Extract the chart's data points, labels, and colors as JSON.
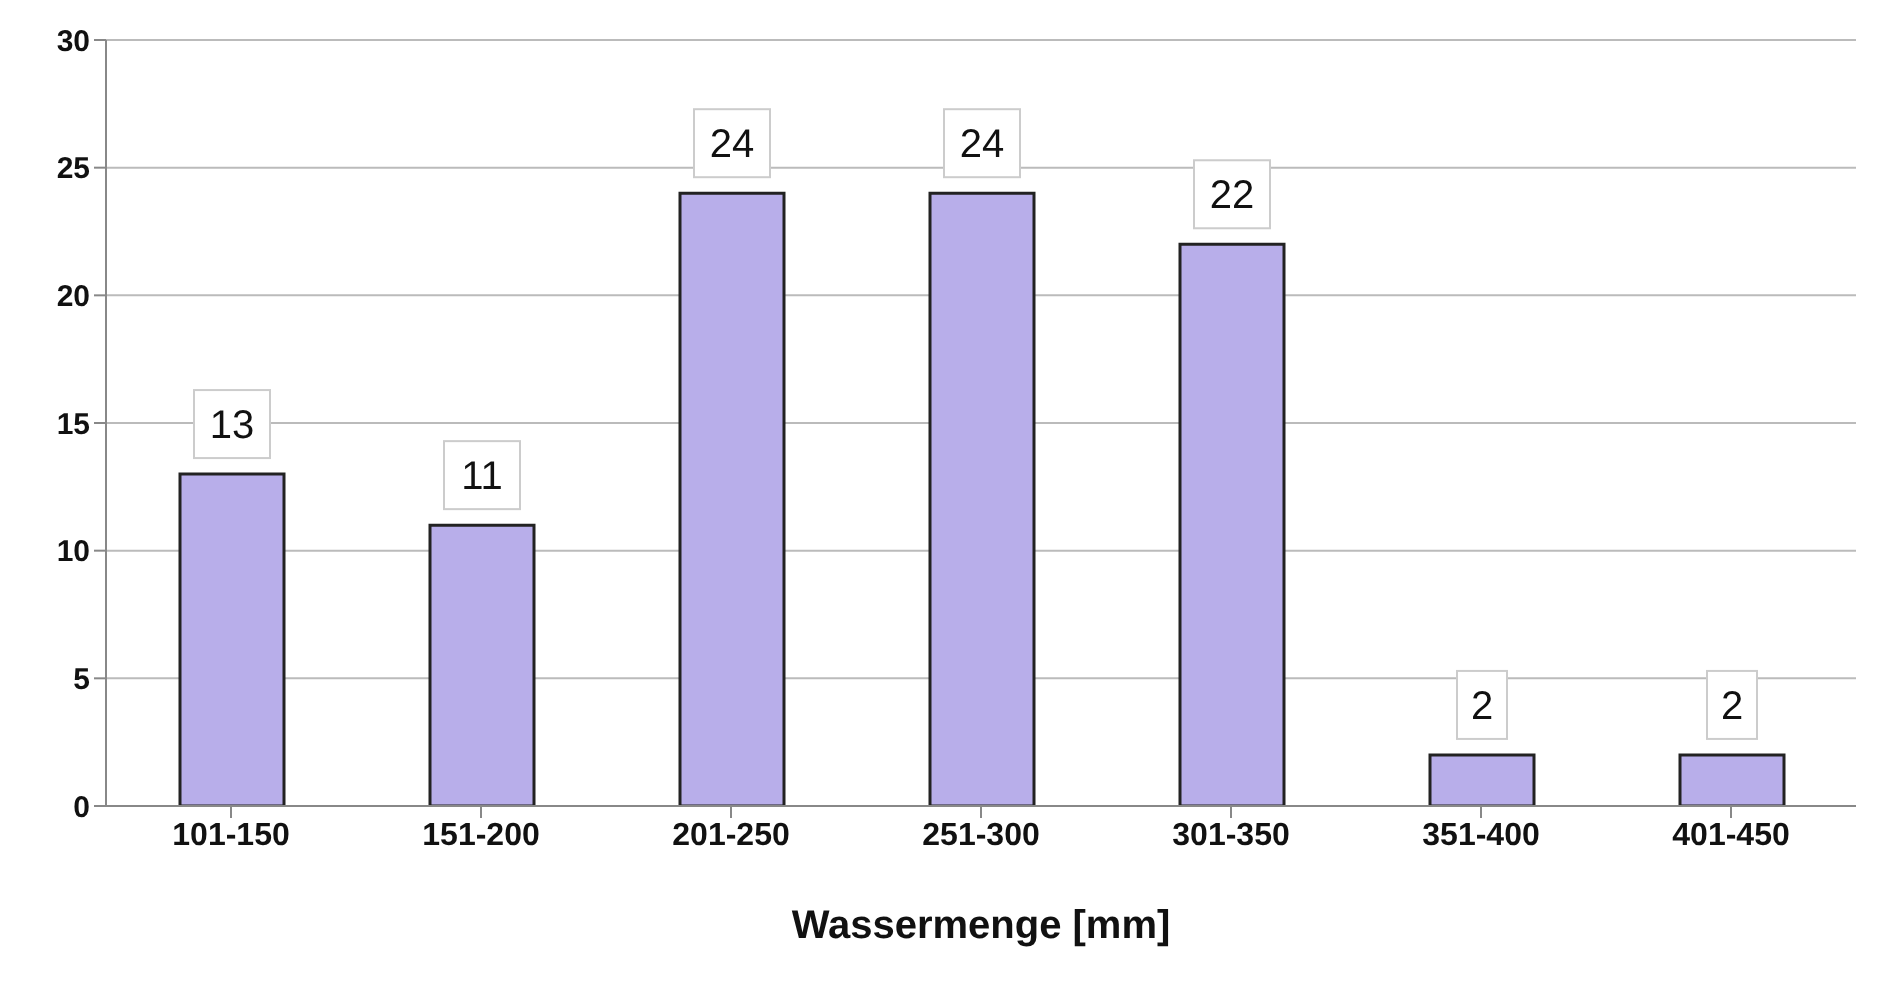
{
  "chart_data": {
    "type": "bar",
    "xlabel": "Wassermenge [mm]",
    "categories": [
      "101-150",
      "151-200",
      "201-250",
      "251-300",
      "301-350",
      "351-400",
      "401-450"
    ],
    "values": [
      13,
      11,
      24,
      24,
      22,
      2,
      2
    ],
    "color": "#b8aeea",
    "ylim": [
      0,
      30
    ],
    "yticks": [
      0,
      5,
      10,
      15,
      20,
      25,
      30
    ],
    "grid": "y",
    "data_labels": true
  }
}
